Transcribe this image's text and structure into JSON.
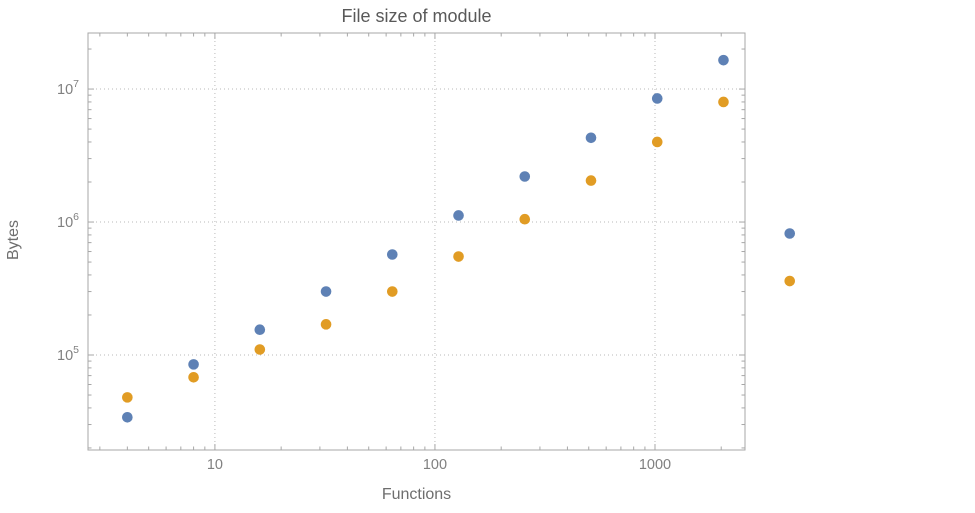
{
  "figure": {
    "background": "#ffffff"
  },
  "chart_data": {
    "type": "scatter",
    "title": "File size of module",
    "xlabel": "Functions",
    "ylabel": "Bytes",
    "x_scale": "log",
    "y_scale": "log",
    "xlim": [
      2.65,
      2565
    ],
    "ylim": [
      19300,
      26400000
    ],
    "legend": "none",
    "grid": {
      "style": "dotted",
      "x_lines": [
        10,
        100,
        1000
      ],
      "y_lines": [
        100000,
        1000000,
        10000000
      ]
    },
    "x_ticks": [
      {
        "value": 10,
        "label": "10"
      },
      {
        "value": 100,
        "label": "100"
      },
      {
        "value": 1000,
        "label": "1000"
      }
    ],
    "y_ticks": [
      {
        "value": 100000,
        "base": "10",
        "exp": "5"
      },
      {
        "value": 1000000,
        "base": "10",
        "exp": "6"
      },
      {
        "value": 10000000,
        "base": "10",
        "exp": "7"
      }
    ],
    "marker": {
      "shape": "circle",
      "radius": 5.3
    },
    "series": [
      {
        "name": "blue",
        "color": "#5e81b5",
        "x": [
          4,
          8,
          16,
          32,
          64,
          128,
          256,
          512,
          1024,
          2048,
          4096
        ],
        "y": [
          34000,
          85000,
          155000,
          300000,
          570000,
          1120000,
          2200000,
          4300000,
          8500000,
          16500000,
          820000
        ]
      },
      {
        "name": "orange",
        "color": "#e19c24",
        "x": [
          4,
          8,
          16,
          32,
          64,
          128,
          256,
          512,
          1024,
          2048,
          4096
        ],
        "y": [
          48000,
          68000,
          110000,
          170000,
          300000,
          550000,
          1050000,
          2050000,
          4000000,
          8000000,
          360000
        ]
      }
    ]
  },
  "style": {
    "frame_color": "#a7a7a7",
    "grid_color": "#b9b9b9",
    "tick_label_color": "#808080",
    "title_color": "#595959",
    "axis_label_color": "#6e6e6e"
  }
}
